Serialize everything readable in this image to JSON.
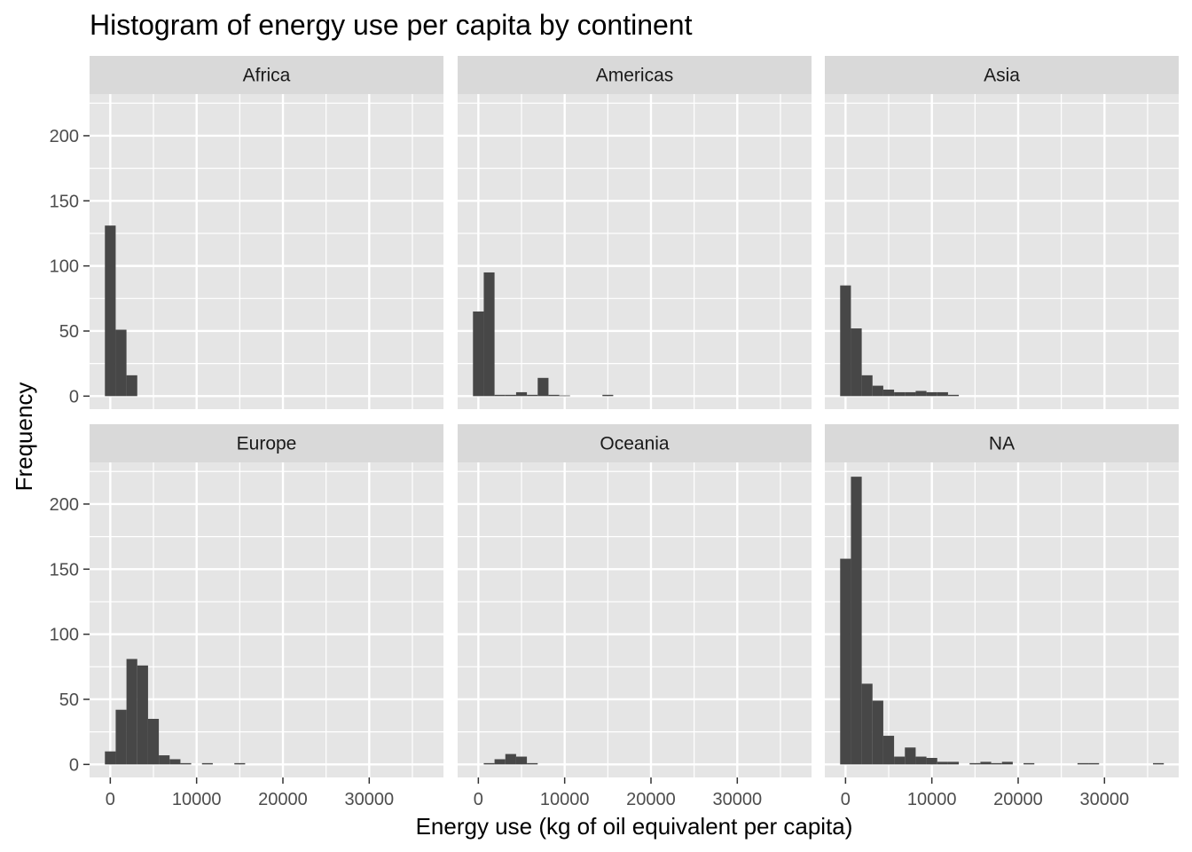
{
  "chart_data": {
    "type": "bar",
    "title": "Histogram of energy use per capita by continent",
    "xlabel": "Energy use (kg of oil equivalent per capita)",
    "ylabel": "Frequency",
    "xlim": [
      -2400,
      38600
    ],
    "ylim": [
      -10,
      232
    ],
    "x_ticks": [
      0,
      10000,
      20000,
      30000
    ],
    "y_ticks": [
      0,
      50,
      100,
      150,
      200
    ],
    "bin_width": 1250,
    "facet_layout": {
      "rows": 2,
      "cols": 3
    },
    "grid": true,
    "colors": {
      "bar": "#474747",
      "panel_background": "#e5e5e5",
      "strip_background": "#d9d9d9",
      "grid": "#ffffff"
    },
    "panels": [
      {
        "name": "Africa",
        "bins": [
          {
            "x0": -625,
            "x1": 625,
            "count": 131
          },
          {
            "x0": 625,
            "x1": 1875,
            "count": 51
          },
          {
            "x0": 1875,
            "x1": 3125,
            "count": 16
          }
        ]
      },
      {
        "name": "Americas",
        "bins": [
          {
            "x0": -625,
            "x1": 625,
            "count": 65
          },
          {
            "x0": 625,
            "x1": 1875,
            "count": 95
          },
          {
            "x0": 1875,
            "x1": 3125,
            "count": 1
          },
          {
            "x0": 3125,
            "x1": 4375,
            "count": 1
          },
          {
            "x0": 4375,
            "x1": 5625,
            "count": 3
          },
          {
            "x0": 5625,
            "x1": 6875,
            "count": 1
          },
          {
            "x0": 6875,
            "x1": 8125,
            "count": 14
          },
          {
            "x0": 8125,
            "x1": 9375,
            "count": 1
          },
          {
            "x0": 9375,
            "x1": 10625,
            "count": 0.5
          },
          {
            "x0": 14375,
            "x1": 15625,
            "count": 1
          }
        ]
      },
      {
        "name": "Asia",
        "bins": [
          {
            "x0": -625,
            "x1": 625,
            "count": 85
          },
          {
            "x0": 625,
            "x1": 1875,
            "count": 52
          },
          {
            "x0": 1875,
            "x1": 3125,
            "count": 16
          },
          {
            "x0": 3125,
            "x1": 4375,
            "count": 8
          },
          {
            "x0": 4375,
            "x1": 5625,
            "count": 5
          },
          {
            "x0": 5625,
            "x1": 6875,
            "count": 3
          },
          {
            "x0": 6875,
            "x1": 8125,
            "count": 3
          },
          {
            "x0": 8125,
            "x1": 9375,
            "count": 4
          },
          {
            "x0": 9375,
            "x1": 10625,
            "count": 3
          },
          {
            "x0": 10625,
            "x1": 11875,
            "count": 3
          },
          {
            "x0": 11875,
            "x1": 13125,
            "count": 1
          }
        ]
      },
      {
        "name": "Europe",
        "bins": [
          {
            "x0": -625,
            "x1": 625,
            "count": 10
          },
          {
            "x0": 625,
            "x1": 1875,
            "count": 42
          },
          {
            "x0": 1875,
            "x1": 3125,
            "count": 81
          },
          {
            "x0": 3125,
            "x1": 4375,
            "count": 76
          },
          {
            "x0": 4375,
            "x1": 5625,
            "count": 35
          },
          {
            "x0": 5625,
            "x1": 6875,
            "count": 7
          },
          {
            "x0": 6875,
            "x1": 8125,
            "count": 4
          },
          {
            "x0": 8125,
            "x1": 9375,
            "count": 1
          },
          {
            "x0": 10625,
            "x1": 11875,
            "count": 1
          },
          {
            "x0": 14375,
            "x1": 15625,
            "count": 1
          }
        ]
      },
      {
        "name": "Oceania",
        "bins": [
          {
            "x0": 625,
            "x1": 1875,
            "count": 1
          },
          {
            "x0": 1875,
            "x1": 3125,
            "count": 4
          },
          {
            "x0": 3125,
            "x1": 4375,
            "count": 8
          },
          {
            "x0": 4375,
            "x1": 5625,
            "count": 6
          },
          {
            "x0": 5625,
            "x1": 6875,
            "count": 1
          }
        ]
      },
      {
        "name": "NA",
        "bins": [
          {
            "x0": -625,
            "x1": 625,
            "count": 158
          },
          {
            "x0": 625,
            "x1": 1875,
            "count": 221
          },
          {
            "x0": 1875,
            "x1": 3125,
            "count": 62
          },
          {
            "x0": 3125,
            "x1": 4375,
            "count": 49
          },
          {
            "x0": 4375,
            "x1": 5625,
            "count": 22
          },
          {
            "x0": 5625,
            "x1": 6875,
            "count": 6
          },
          {
            "x0": 6875,
            "x1": 8125,
            "count": 13
          },
          {
            "x0": 8125,
            "x1": 9375,
            "count": 6
          },
          {
            "x0": 9375,
            "x1": 10625,
            "count": 5
          },
          {
            "x0": 10625,
            "x1": 11875,
            "count": 2
          },
          {
            "x0": 11875,
            "x1": 13125,
            "count": 2
          },
          {
            "x0": 14375,
            "x1": 15625,
            "count": 1
          },
          {
            "x0": 15625,
            "x1": 16875,
            "count": 2
          },
          {
            "x0": 16875,
            "x1": 18125,
            "count": 1
          },
          {
            "x0": 18125,
            "x1": 19375,
            "count": 2
          },
          {
            "x0": 20625,
            "x1": 21875,
            "count": 1
          },
          {
            "x0": 26875,
            "x1": 28125,
            "count": 1
          },
          {
            "x0": 28125,
            "x1": 29375,
            "count": 1
          },
          {
            "x0": 35625,
            "x1": 36875,
            "count": 1
          }
        ]
      }
    ]
  }
}
